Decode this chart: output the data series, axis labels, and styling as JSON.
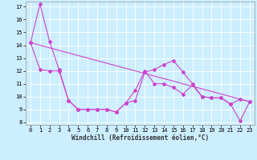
{
  "xlabel": "Windchill (Refroidissement éolien,°C)",
  "background_color": "#cceeff",
  "line_color": "#cc44cc",
  "grid_color": "#ffffff",
  "x_values": [
    0,
    1,
    2,
    3,
    4,
    5,
    6,
    7,
    8,
    9,
    10,
    11,
    12,
    13,
    14,
    15,
    16,
    17,
    18,
    19,
    20,
    21,
    22,
    23
  ],
  "series1": [
    14.2,
    17.2,
    14.3,
    12.1,
    9.7,
    9.0,
    9.0,
    9.0,
    9.0,
    8.8,
    9.5,
    9.7,
    11.9,
    12.1,
    12.5,
    12.8,
    11.9,
    11.0,
    10.0,
    9.9,
    9.9,
    9.4,
    9.8,
    9.6
  ],
  "series2": [
    14.2,
    12.1,
    12.0,
    12.0,
    9.7,
    9.0,
    9.0,
    9.0,
    9.0,
    8.8,
    9.5,
    10.5,
    12.0,
    11.0,
    11.0,
    10.7,
    10.2,
    10.9,
    10.0,
    9.9,
    9.9,
    9.4,
    8.1,
    9.6
  ],
  "series3_x": [
    0,
    23
  ],
  "series3_y": [
    14.2,
    9.6
  ],
  "ylim_min": 7.8,
  "ylim_max": 17.4,
  "yticks": [
    8,
    9,
    10,
    11,
    12,
    13,
    14,
    15,
    16,
    17
  ],
  "xticks": [
    0,
    1,
    2,
    3,
    4,
    5,
    6,
    7,
    8,
    9,
    10,
    11,
    12,
    13,
    14,
    15,
    16,
    17,
    18,
    19,
    20,
    21,
    22,
    23
  ],
  "xlabel_fontsize": 5.5,
  "tick_fontsize": 5.0,
  "linewidth": 0.8,
  "markersize": 2.0
}
